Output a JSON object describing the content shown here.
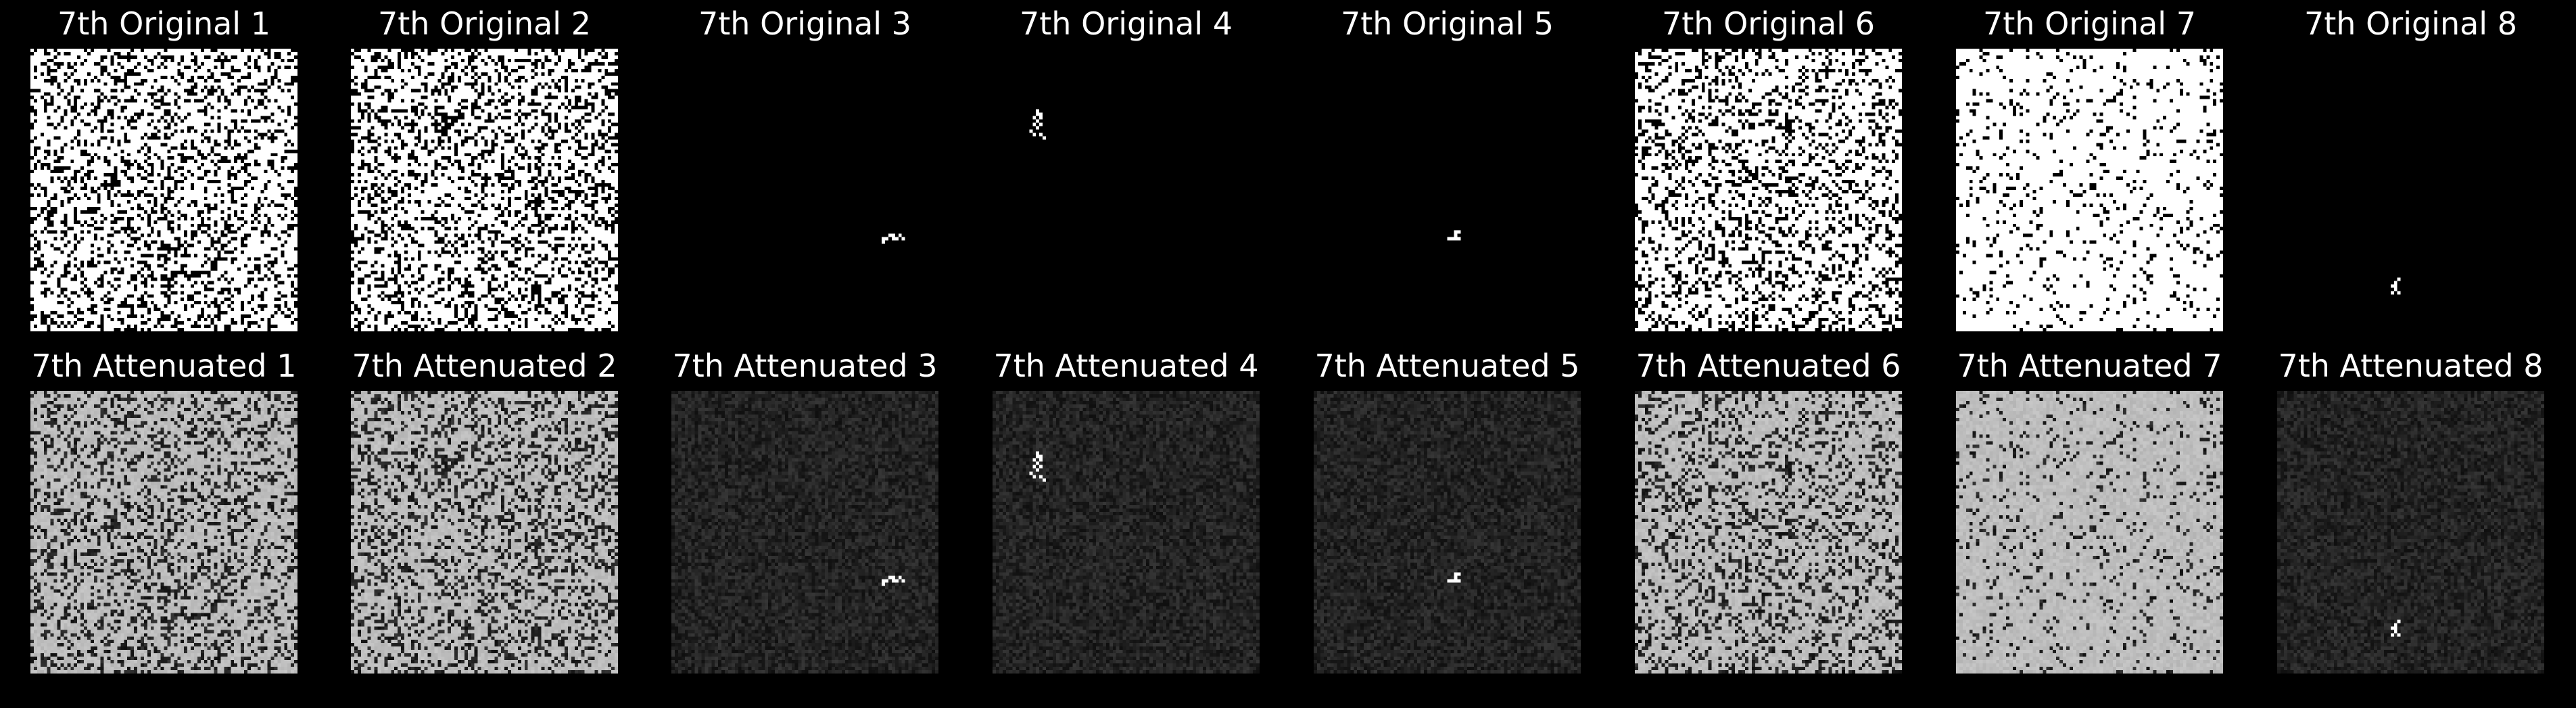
{
  "figure": {
    "rows": [
      {
        "kind": "original",
        "panels": [
          {
            "title": "7th Original 1",
            "pattern": "noise",
            "fill": 0.72,
            "level": 255
          },
          {
            "title": "7th Original 2",
            "pattern": "noise",
            "fill": 0.7,
            "level": 255
          },
          {
            "title": "7th Original 3",
            "pattern": "blob",
            "fill": 0.0,
            "level": 255
          },
          {
            "title": "7th Original 4",
            "pattern": "blob",
            "fill": 0.0,
            "level": 255
          },
          {
            "title": "7th Original 5",
            "pattern": "blob",
            "fill": 0.0,
            "level": 255
          },
          {
            "title": "7th Original 6",
            "pattern": "noise",
            "fill": 0.74,
            "level": 255
          },
          {
            "title": "7th Original 7",
            "pattern": "noise",
            "fill": 0.9,
            "level": 255
          },
          {
            "title": "7th Original 8",
            "pattern": "blob",
            "fill": 0.0,
            "level": 255
          }
        ]
      },
      {
        "kind": "attenuated",
        "panels": [
          {
            "title": "7th Attenuated 1",
            "pattern": "noise",
            "fill": 0.72,
            "level": 190
          },
          {
            "title": "7th Attenuated 2",
            "pattern": "noise",
            "fill": 0.7,
            "level": 190
          },
          {
            "title": "7th Attenuated 3",
            "pattern": "blob",
            "fill": 0.0,
            "level": 255
          },
          {
            "title": "7th Attenuated 4",
            "pattern": "blob",
            "fill": 0.0,
            "level": 255
          },
          {
            "title": "7th Attenuated 5",
            "pattern": "blob",
            "fill": 0.0,
            "level": 255
          },
          {
            "title": "7th Attenuated 6",
            "pattern": "noise",
            "fill": 0.74,
            "level": 190
          },
          {
            "title": "7th Attenuated 7",
            "pattern": "noise",
            "fill": 0.9,
            "level": 190
          },
          {
            "title": "7th Attenuated 8",
            "pattern": "blob",
            "fill": 0.0,
            "level": 255
          }
        ]
      }
    ],
    "colors": {
      "background": "#000000",
      "title_text": "#ffffff"
    }
  }
}
